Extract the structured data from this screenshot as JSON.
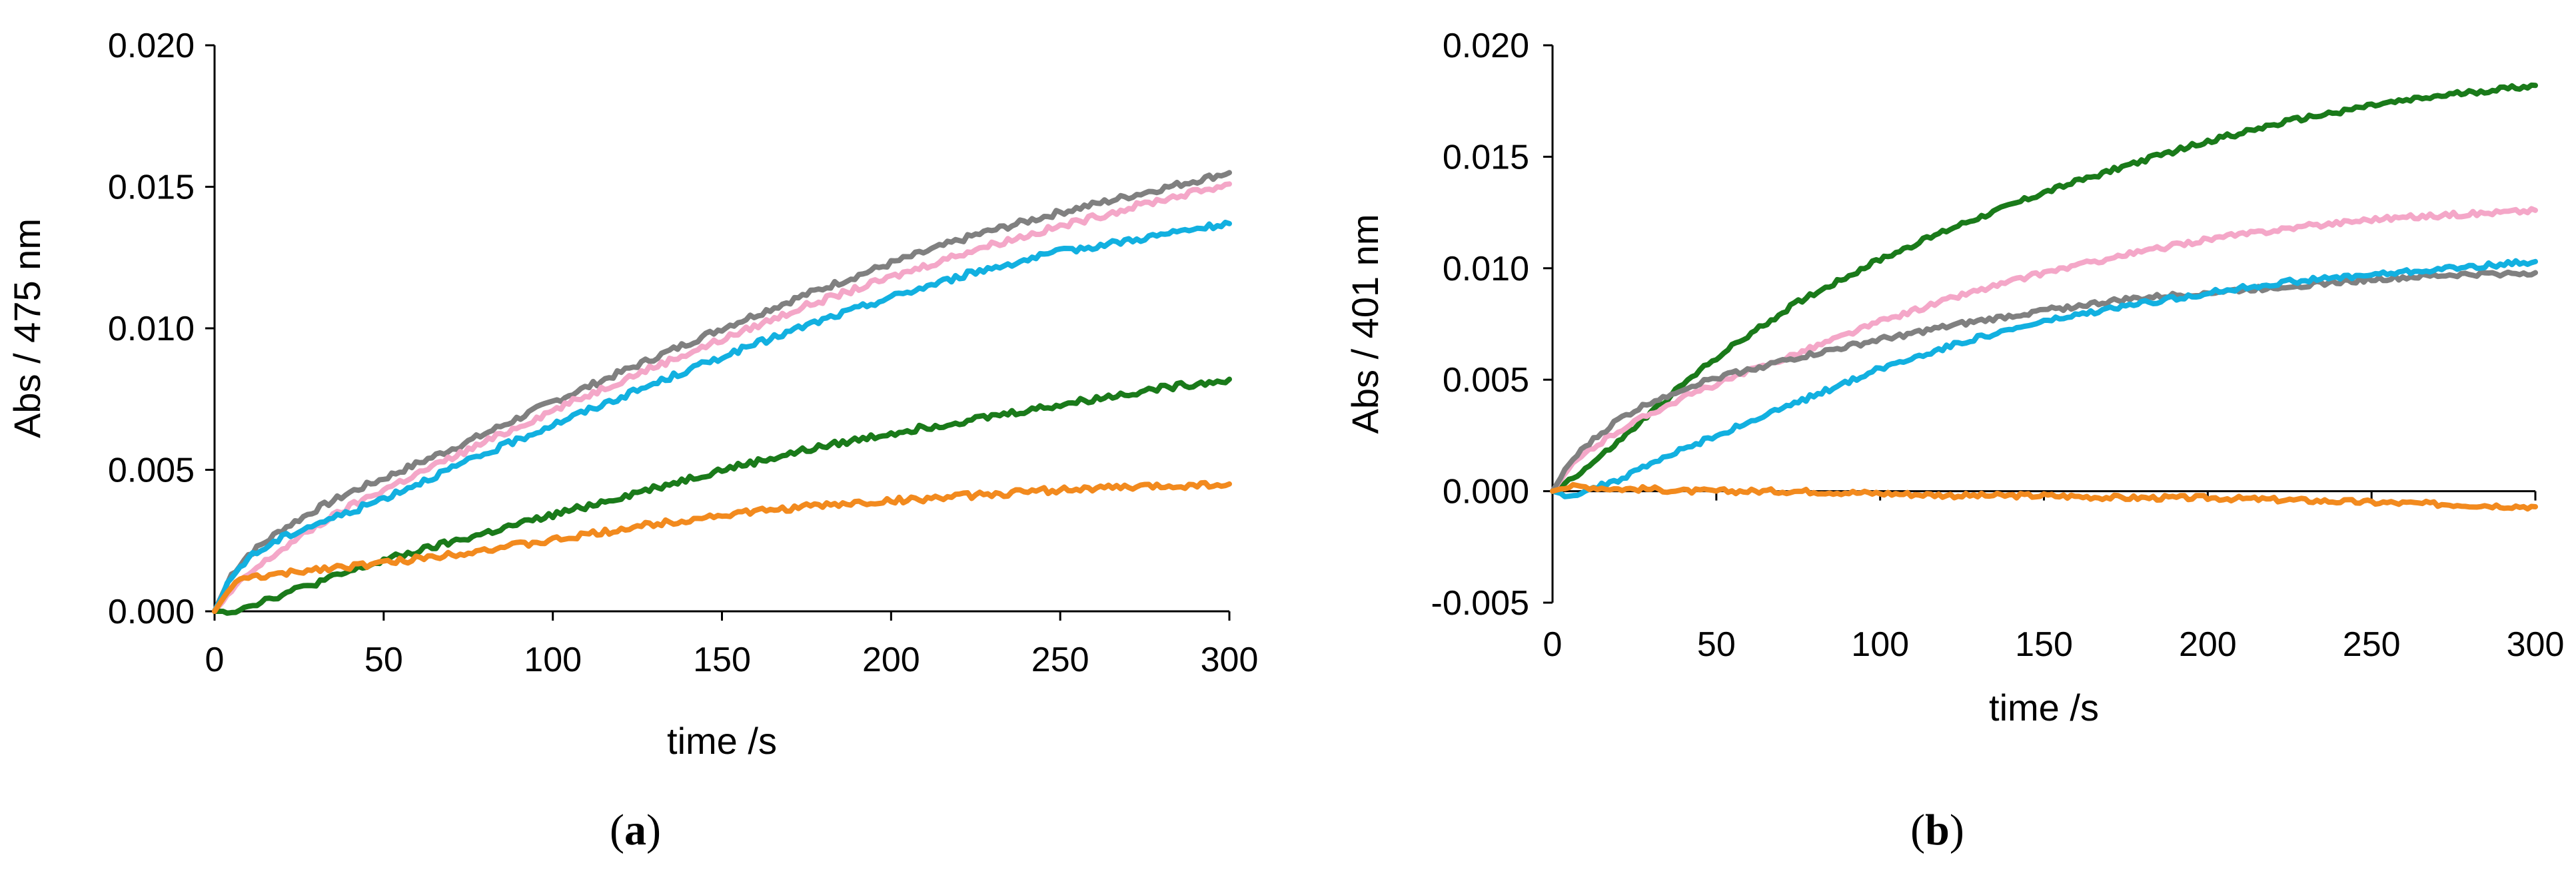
{
  "chart_data": [
    {
      "type": "line",
      "panel_label": "a",
      "xlabel": "time /s",
      "ylabel": "Abs / 475 nm",
      "xlim": [
        0,
        300
      ],
      "ylim": [
        0,
        0.02
      ],
      "xticks": [
        0,
        50,
        100,
        150,
        200,
        250,
        300
      ],
      "xtick_labels": [
        "0",
        "50",
        "100",
        "150",
        "200",
        "250",
        "300"
      ],
      "yticks": [
        0,
        0.005,
        0.01,
        0.015,
        0.02
      ],
      "ytick_labels": [
        "0.000",
        "0.005",
        "0.010",
        "0.015",
        "0.020"
      ],
      "grid": false,
      "series": [
        {
          "color": "#808080",
          "x": [
            0,
            5,
            10,
            20,
            30,
            40,
            50,
            75,
            100,
            125,
            150,
            175,
            200,
            225,
            250,
            275,
            300
          ],
          "values": [
            0,
            0.0013,
            0.002,
            0.0029,
            0.0036,
            0.0042,
            0.0047,
            0.006,
            0.0074,
            0.0087,
            0.01,
            0.0112,
            0.0123,
            0.0133,
            0.0141,
            0.0148,
            0.0155
          ]
        },
        {
          "color": "#f4a7c8",
          "x": [
            0,
            5,
            10,
            20,
            30,
            40,
            50,
            75,
            100,
            125,
            150,
            175,
            200,
            225,
            250,
            275,
            300
          ],
          "values": [
            0,
            0.0007,
            0.0013,
            0.0022,
            0.003,
            0.0037,
            0.0043,
            0.0057,
            0.0071,
            0.0084,
            0.0096,
            0.0108,
            0.0118,
            0.0128,
            0.0136,
            0.0144,
            0.0151
          ]
        },
        {
          "color": "#12b0e0",
          "x": [
            0,
            5,
            10,
            20,
            30,
            40,
            50,
            75,
            100,
            125,
            150,
            175,
            200,
            225,
            250,
            275,
            300
          ],
          "values": [
            0,
            0.0012,
            0.0019,
            0.0026,
            0.0031,
            0.0035,
            0.004,
            0.0053,
            0.0066,
            0.0078,
            0.009,
            0.0101,
            0.0111,
            0.012,
            0.0127,
            0.0132,
            0.0137
          ]
        },
        {
          "color": "#1a7a1a",
          "x": [
            0,
            5,
            10,
            20,
            30,
            40,
            50,
            75,
            100,
            125,
            150,
            175,
            200,
            225,
            250,
            275,
            300
          ],
          "values": [
            0,
            0.0,
            0.0002,
            0.0006,
            0.001,
            0.0014,
            0.0018,
            0.0026,
            0.0034,
            0.0042,
            0.005,
            0.0057,
            0.0063,
            0.0068,
            0.0073,
            0.0078,
            0.0082
          ]
        },
        {
          "color": "#f28a1e",
          "x": [
            0,
            5,
            10,
            20,
            30,
            40,
            50,
            75,
            100,
            125,
            150,
            175,
            200,
            225,
            250,
            275,
            300
          ],
          "values": [
            0,
            0.0009,
            0.0012,
            0.0013,
            0.0015,
            0.0016,
            0.0017,
            0.0021,
            0.0025,
            0.003,
            0.0034,
            0.0037,
            0.0039,
            0.0041,
            0.0043,
            0.0044,
            0.0045
          ]
        }
      ]
    },
    {
      "type": "line",
      "panel_label": "b",
      "xlabel": "time /s",
      "ylabel": "Abs / 401 nm",
      "xlim": [
        0,
        300
      ],
      "ylim": [
        -0.005,
        0.02
      ],
      "xticks": [
        0,
        50,
        100,
        150,
        200,
        250,
        300
      ],
      "xtick_labels": [
        "0",
        "50",
        "100",
        "150",
        "200",
        "250",
        "300"
      ],
      "yticks": [
        -0.005,
        0,
        0.005,
        0.01,
        0.015,
        0.02
      ],
      "ytick_labels": [
        "-0.005",
        "0.000",
        "0.005",
        "0.010",
        "0.015",
        "0.020"
      ],
      "grid": false,
      "series": [
        {
          "color": "#1a7a1a",
          "x": [
            0,
            5,
            10,
            20,
            30,
            40,
            50,
            75,
            100,
            125,
            150,
            175,
            200,
            225,
            250,
            275,
            300
          ],
          "values": [
            0,
            0.0005,
            0.001,
            0.0022,
            0.0035,
            0.0048,
            0.006,
            0.0085,
            0.0104,
            0.012,
            0.0134,
            0.0146,
            0.0157,
            0.0166,
            0.0173,
            0.0178,
            0.0182
          ]
        },
        {
          "color": "#f4a7c8",
          "x": [
            0,
            5,
            10,
            20,
            30,
            40,
            50,
            75,
            100,
            125,
            150,
            175,
            200,
            225,
            250,
            275,
            300
          ],
          "values": [
            0,
            0.001,
            0.0017,
            0.0027,
            0.0035,
            0.0042,
            0.0048,
            0.0062,
            0.0076,
            0.0088,
            0.0098,
            0.0106,
            0.0113,
            0.0118,
            0.0122,
            0.0124,
            0.0126
          ]
        },
        {
          "color": "#808080",
          "x": [
            0,
            5,
            10,
            20,
            30,
            40,
            50,
            75,
            100,
            125,
            150,
            175,
            200,
            225,
            250,
            275,
            300
          ],
          "values": [
            0,
            0.0012,
            0.002,
            0.0032,
            0.004,
            0.0046,
            0.0051,
            0.006,
            0.0068,
            0.0075,
            0.0081,
            0.0086,
            0.0089,
            0.0092,
            0.0095,
            0.0097,
            0.0098
          ]
        },
        {
          "color": "#12b0e0",
          "x": [
            0,
            5,
            10,
            20,
            30,
            40,
            50,
            75,
            100,
            125,
            150,
            175,
            200,
            225,
            250,
            275,
            300
          ],
          "values": [
            0,
            -0.0002,
            0.0,
            0.0005,
            0.0012,
            0.0019,
            0.0025,
            0.004,
            0.0055,
            0.0067,
            0.0076,
            0.0083,
            0.0089,
            0.0094,
            0.0097,
            0.01,
            0.0103
          ]
        },
        {
          "color": "#f28a1e",
          "x": [
            0,
            5,
            10,
            20,
            30,
            40,
            50,
            75,
            100,
            125,
            150,
            175,
            200,
            225,
            250,
            275,
            300
          ],
          "values": [
            0,
            0.0002,
            0.0002,
            0.0001,
            0.0001,
            0.0,
            0.0,
            0.0,
            -0.0001,
            -0.0002,
            -0.0002,
            -0.0003,
            -0.0003,
            -0.0004,
            -0.0005,
            -0.0006,
            -0.0007
          ]
        }
      ]
    }
  ]
}
